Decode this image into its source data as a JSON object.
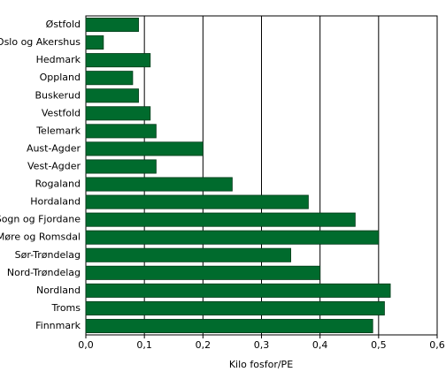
{
  "chart_data": {
    "type": "hbar",
    "categories": [
      "Østfold",
      "Oslo og Akershus",
      "Hedmark",
      "Oppland",
      "Buskerud",
      "Vestfold",
      "Telemark",
      "Aust-Agder",
      "Vest-Agder",
      "Rogaland",
      "Hordaland",
      "Sogn og Fjordane",
      "Møre og Romsdal",
      "Sør-Trøndelag",
      "Nord-Trøndelag",
      "Nordland",
      "Troms",
      "Finnmark"
    ],
    "values": [
      0.09,
      0.03,
      0.11,
      0.08,
      0.09,
      0.11,
      0.12,
      0.2,
      0.12,
      0.25,
      0.38,
      0.46,
      0.5,
      0.35,
      0.4,
      0.52,
      0.51,
      0.49
    ],
    "color": "#006b2d",
    "xlabel": "Kilo fosfor/PE",
    "xlim": [
      0,
      0.6
    ],
    "xticks": [
      {
        "value": 0,
        "label": "0,0"
      },
      {
        "value": 0.1,
        "label": "0,1"
      },
      {
        "value": 0.2,
        "label": "0,2"
      },
      {
        "value": 0.3,
        "label": "0,3"
      },
      {
        "value": 0.4,
        "label": "0,4"
      },
      {
        "value": 0.5,
        "label": "0,5"
      },
      {
        "value": 0.6,
        "label": "0,6"
      }
    ],
    "grid": true
  }
}
